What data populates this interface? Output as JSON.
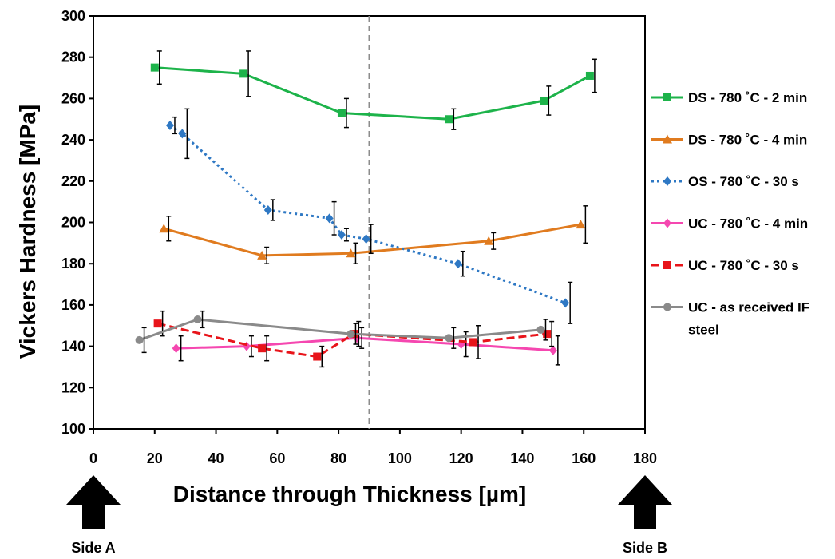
{
  "chart_data": {
    "type": "line",
    "xlabel": "Distance through Thickness [µm]",
    "ylabel": "Vickers Hardness [MPa]",
    "xlim": [
      0,
      180
    ],
    "ylim": [
      100,
      300
    ],
    "xticks": [
      0,
      20,
      40,
      60,
      80,
      100,
      120,
      140,
      160,
      180
    ],
    "yticks": [
      100,
      120,
      140,
      160,
      180,
      200,
      220,
      240,
      260,
      280,
      300
    ],
    "grid": false,
    "legend_position": "right",
    "reference_line": {
      "x": 90,
      "style": "dashed",
      "color": "#8c8c8c"
    },
    "series": [
      {
        "name": "DS - 780 ˚C - 2 min",
        "color": "#1db34a",
        "marker": "square",
        "dash": "solid",
        "x": [
          20,
          49,
          81,
          116,
          147,
          162
        ],
        "y": [
          275,
          272,
          253,
          250,
          259,
          271
        ],
        "err": [
          8,
          11,
          7,
          5,
          7,
          8
        ]
      },
      {
        "name": "DS - 780 ˚C - 4 min",
        "color": "#e07b1f",
        "marker": "triangle",
        "dash": "solid",
        "x": [
          23,
          55,
          84,
          129,
          159
        ],
        "y": [
          197,
          184,
          185,
          191,
          199
        ],
        "err": [
          6,
          4,
          5,
          4,
          9
        ]
      },
      {
        "name": "OS - 780 ˚C - 30 s",
        "color": "#2e78c4",
        "marker": "diamond",
        "dash": "dotted",
        "x": [
          25,
          29,
          57,
          77,
          81,
          89,
          119,
          154
        ],
        "y": [
          247,
          243,
          206,
          202,
          194,
          192,
          180,
          161
        ],
        "err": [
          4,
          12,
          5,
          8,
          3,
          7,
          6,
          10
        ]
      },
      {
        "name": "UC - 780 ˚C - 4 min",
        "color": "#f547b0",
        "marker": "diamond",
        "dash": "solid",
        "x": [
          27,
          50,
          86,
          120,
          150
        ],
        "y": [
          139,
          140,
          144,
          141,
          138
        ],
        "err": [
          6,
          5,
          5,
          6,
          7
        ]
      },
      {
        "name": "UC - 780 ˚C - 30 s",
        "color": "#e8141a",
        "marker": "square",
        "dash": "dashed",
        "x": [
          21,
          55,
          73,
          85,
          124,
          148
        ],
        "y": [
          151,
          139,
          135,
          146,
          142,
          146
        ],
        "err": [
          6,
          6,
          5,
          6,
          8,
          6
        ]
      },
      {
        "name": "UC - as received IF steel",
        "color": "#8a8a8a",
        "marker": "circle",
        "dash": "solid",
        "x": [
          15,
          34,
          84,
          116,
          146
        ],
        "y": [
          143,
          153,
          146,
          144,
          148
        ],
        "err": [
          6,
          4,
          5,
          5,
          5
        ]
      }
    ],
    "side_labels": [
      {
        "text": "Side A",
        "x": 0
      },
      {
        "text": "Side B",
        "x": 180
      }
    ]
  }
}
